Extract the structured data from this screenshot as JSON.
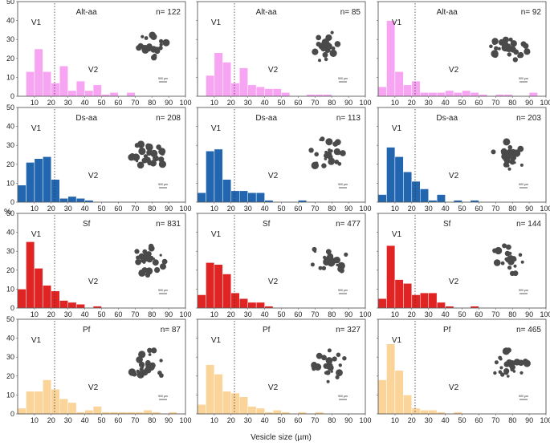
{
  "figure": {
    "y_axis_label": "%",
    "x_axis_label": "Vesicle size (µm)",
    "scale_bar_label": "500 µm",
    "threshold_label_1": "V1",
    "threshold_label_2": "V2"
  },
  "chart_data": {
    "type": "bar",
    "xlabel": "Vesicle size (µm)",
    "ylabel": "%",
    "xlim": [
      0,
      100
    ],
    "ylim": [
      0,
      50
    ],
    "x_ticks": [
      10,
      20,
      30,
      40,
      50,
      60,
      70,
      80,
      90,
      100
    ],
    "y_ticks": [
      0,
      10,
      20,
      30,
      40,
      50
    ],
    "bin_width": 5,
    "bin_starts": [
      0,
      5,
      10,
      15,
      20,
      25,
      30,
      35,
      40,
      45,
      50,
      55,
      60,
      65,
      70,
      75,
      80,
      85,
      90,
      95
    ],
    "divider_x": 22,
    "rows": [
      {
        "label": "Alt-aa",
        "color": "#f7a4f2",
        "panels": [
          {
            "n_label": "n= 122",
            "values": [
              0,
              13,
              25,
              13,
              7,
              16,
              3,
              8,
              3,
              6,
              1,
              2,
              0,
              2,
              0,
              0,
              0,
              0,
              0,
              0
            ]
          },
          {
            "n_label": "n= 85",
            "values": [
              0,
              11,
              23,
              18,
              7,
              15,
              6,
              5,
              4,
              4,
              2,
              0,
              0,
              1,
              1,
              1,
              0,
              0,
              0,
              0
            ]
          },
          {
            "n_label": "n= 92",
            "values": [
              5,
              40,
              13,
              6,
              8,
              2,
              2,
              2,
              3,
              2,
              3,
              2,
              1,
              0,
              1,
              1,
              0,
              0,
              2,
              0
            ]
          }
        ]
      },
      {
        "label": "Ds-aa",
        "color": "#2266b0",
        "panels": [
          {
            "n_label": "n= 208",
            "values": [
              9,
              21,
              23,
              24,
              12,
              2,
              3,
              2,
              1,
              0,
              0,
              0,
              0,
              0,
              0,
              0,
              0,
              0,
              0,
              0
            ]
          },
          {
            "n_label": "n= 113",
            "values": [
              5,
              27,
              28,
              12,
              6,
              6,
              5,
              5,
              1,
              0,
              0,
              0,
              1,
              0,
              0,
              0,
              0,
              0,
              0,
              0
            ]
          },
          {
            "n_label": "n= 203",
            "values": [
              4,
              29,
              24,
              16,
              11,
              7,
              1,
              4,
              0,
              1,
              0,
              1,
              0,
              0,
              0,
              0,
              0,
              0,
              0,
              0
            ]
          }
        ]
      },
      {
        "label": "Sf",
        "color": "#e02424",
        "panels": [
          {
            "n_label": "n= 831",
            "values": [
              10,
              35,
              21,
              12,
              9,
              4,
              3,
              2,
              0,
              1,
              0,
              0,
              0,
              0,
              0,
              0,
              0,
              0,
              0,
              0
            ]
          },
          {
            "n_label": "n= 477",
            "values": [
              7,
              24,
              23,
              18,
              8,
              5,
              3,
              3,
              1,
              0,
              0,
              0,
              0,
              0,
              0,
              0,
              0,
              0,
              0,
              0
            ]
          },
          {
            "n_label": "n= 144",
            "values": [
              5,
              33,
              15,
              13,
              7,
              8,
              8,
              3,
              1,
              0,
              0,
              1,
              0,
              0,
              0,
              0,
              0,
              0,
              0,
              0
            ]
          }
        ]
      },
      {
        "label": "Pf",
        "color": "#fbd49a",
        "panels": [
          {
            "n_label": "n= 87",
            "values": [
              3,
              12,
              12,
              18,
              13,
              8,
              6,
              1,
              2,
              4,
              1,
              1,
              1,
              1,
              1,
              2,
              1,
              0,
              1,
              0
            ]
          },
          {
            "n_label": "n= 327",
            "values": [
              5,
              26,
              21,
              12,
              11,
              9,
              4,
              3,
              1,
              2,
              1,
              0,
              1,
              0,
              1,
              0,
              0,
              0,
              0,
              0
            ]
          },
          {
            "n_label": "n= 465",
            "values": [
              18,
              37,
              23,
              10,
              3,
              2,
              2,
              1,
              0,
              1,
              0,
              0,
              0,
              0,
              0,
              0,
              0,
              0,
              0,
              0
            ]
          }
        ]
      }
    ]
  }
}
